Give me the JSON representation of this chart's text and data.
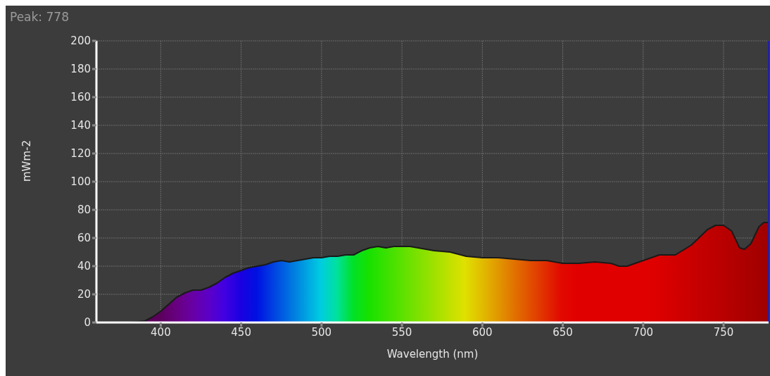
{
  "chart_data": {
    "type": "area",
    "annotations": [
      "Peak: 778"
    ],
    "xlabel": "Wavelength (nm)",
    "ylabel": "mWm-2",
    "x": [
      380,
      390,
      395,
      400,
      405,
      410,
      415,
      420,
      425,
      430,
      435,
      440,
      445,
      450,
      455,
      460,
      465,
      470,
      475,
      480,
      485,
      490,
      495,
      500,
      505,
      510,
      515,
      520,
      525,
      530,
      535,
      540,
      545,
      550,
      555,
      560,
      570,
      580,
      590,
      600,
      610,
      620,
      630,
      640,
      650,
      660,
      670,
      680,
      685,
      690,
      700,
      710,
      715,
      720,
      730,
      740,
      745,
      750,
      755,
      760,
      763,
      767,
      772,
      775,
      778
    ],
    "series": [
      {
        "color": "#1a1a1a",
        "values": [
          0,
          1,
          4,
          8,
          13,
          18,
          21,
          23,
          23,
          25,
          28,
          32,
          35,
          37,
          39,
          40,
          41,
          43,
          44,
          43,
          44,
          45,
          46,
          46,
          47,
          47,
          48,
          48,
          51,
          53,
          54,
          53,
          54,
          54,
          54,
          53,
          51,
          50,
          47,
          46,
          46,
          45,
          44,
          44,
          42,
          42,
          43,
          42,
          40,
          40,
          44,
          48,
          48,
          48,
          55,
          66,
          69,
          69,
          65,
          53,
          52,
          56,
          68,
          71,
          71
        ]
      }
    ],
    "xlim": [
      360,
      778
    ],
    "xticks": [
      400,
      450,
      500,
      550,
      600,
      650,
      700,
      750
    ],
    "ylim": [
      0,
      200
    ],
    "yticks": [
      0,
      20,
      40,
      60,
      80,
      100,
      120,
      140,
      160,
      180,
      200
    ],
    "grid": true,
    "ref_lines": [
      {
        "axis": "x",
        "value": 778,
        "color": "#2020a0"
      }
    ]
  }
}
